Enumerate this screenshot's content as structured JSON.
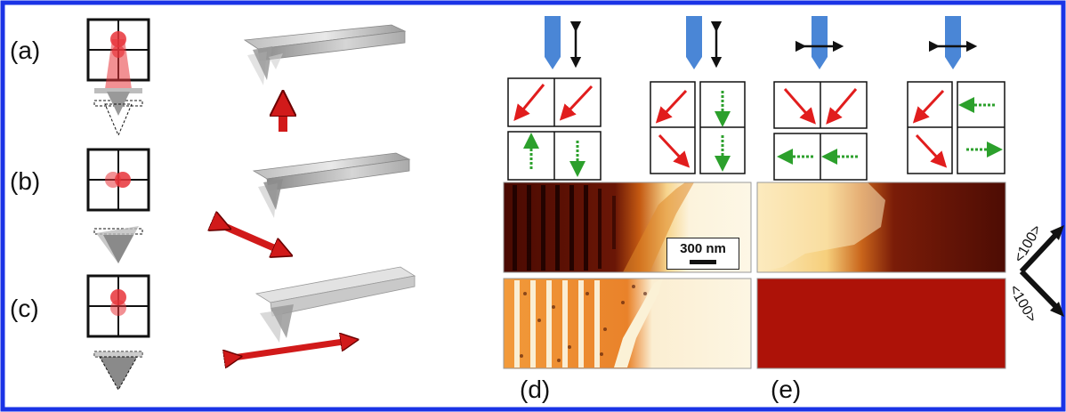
{
  "panel_labels": {
    "a": "(a)",
    "b": "(b)",
    "c": "(c)",
    "d": "(d)",
    "e": "(e)"
  },
  "scale_bar": {
    "label": "300 nm"
  },
  "axes": {
    "upper": "<100>",
    "lower": "<100>"
  },
  "colors": {
    "frame": "#1a33e6",
    "laser": "#e8343a",
    "tip_blue": "#4a86d6",
    "domain_arrow_red": "#e11d1d",
    "domain_arrow_green": "#2ca02c",
    "image_dark": "#5a0d04",
    "image_mid": "#c8500c",
    "image_bright": "#fbf4dd"
  }
}
